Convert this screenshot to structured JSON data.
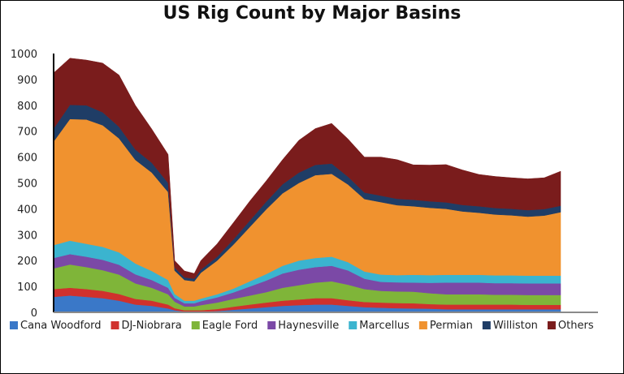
{
  "chart_data": {
    "type": "area",
    "stacked": true,
    "title": "US Rig Count by Major Basins",
    "xlabel": "",
    "ylabel": "",
    "ylim": [
      0,
      1000
    ],
    "yticks": [
      0,
      100,
      200,
      300,
      400,
      500,
      600,
      700,
      800,
      900,
      1000
    ],
    "grid": false,
    "legend_position": "bottom",
    "x": [
      0,
      5,
      10,
      15,
      20,
      25,
      30,
      35,
      37,
      40,
      43,
      45,
      50,
      55,
      60,
      65,
      70,
      75,
      80,
      85,
      90,
      95,
      100,
      105,
      110,
      115,
      120,
      125,
      130,
      135,
      140,
      145,
      150,
      155
    ],
    "series": [
      {
        "name": "Cana Woodford",
        "color": "#3a78c8",
        "values": [
          60,
          65,
          60,
          55,
          45,
          30,
          25,
          15,
          8,
          3,
          3,
          3,
          5,
          10,
          15,
          20,
          25,
          28,
          30,
          30,
          25,
          20,
          18,
          16,
          15,
          14,
          12,
          12,
          12,
          12,
          12,
          12,
          12,
          12
        ]
      },
      {
        "name": "DJ-Niobrara",
        "color": "#d0312d",
        "values": [
          30,
          30,
          30,
          28,
          26,
          22,
          20,
          15,
          8,
          5,
          5,
          5,
          8,
          12,
          15,
          18,
          20,
          22,
          25,
          25,
          22,
          20,
          20,
          20,
          20,
          18,
          18,
          18,
          18,
          18,
          18,
          17,
          17,
          17
        ]
      },
      {
        "name": "Eagle Ford",
        "color": "#7fb539",
        "values": [
          80,
          90,
          85,
          80,
          75,
          60,
          50,
          40,
          25,
          15,
          15,
          20,
          25,
          30,
          35,
          40,
          50,
          55,
          60,
          65,
          60,
          50,
          45,
          45,
          45,
          42,
          40,
          40,
          40,
          38,
          38,
          38,
          38,
          38
        ]
      },
      {
        "name": "Haynesville",
        "color": "#7b49a6",
        "values": [
          40,
          40,
          40,
          40,
          38,
          35,
          30,
          25,
          15,
          12,
          12,
          15,
          20,
          25,
          35,
          45,
          55,
          60,
          60,
          60,
          55,
          40,
          35,
          35,
          35,
          40,
          45,
          45,
          45,
          45,
          45,
          45,
          45,
          45
        ]
      },
      {
        "name": "Marcellus",
        "color": "#3bb4cf",
        "values": [
          50,
          52,
          50,
          50,
          48,
          42,
          35,
          30,
          15,
          10,
          10,
          10,
          12,
          15,
          20,
          25,
          30,
          35,
          35,
          35,
          32,
          28,
          28,
          28,
          30,
          30,
          30,
          30,
          30,
          30,
          30,
          30,
          30,
          30
        ]
      },
      {
        "name": "Permian",
        "color": "#f0922f",
        "values": [
          400,
          470,
          480,
          470,
          440,
          400,
          380,
          340,
          90,
          80,
          75,
          100,
          130,
          170,
          210,
          250,
          280,
          300,
          320,
          320,
          300,
          280,
          280,
          270,
          265,
          260,
          255,
          245,
          240,
          235,
          232,
          228,
          232,
          245
        ]
      },
      {
        "name": "Williston",
        "color": "#1f3d66",
        "values": [
          50,
          55,
          55,
          50,
          45,
          40,
          38,
          35,
          12,
          10,
          10,
          12,
          15,
          20,
          25,
          30,
          35,
          40,
          40,
          40,
          30,
          25,
          25,
          25,
          25,
          25,
          25,
          25,
          25,
          25,
          25,
          25,
          25,
          25
        ]
      },
      {
        "name": "Others",
        "color": "#7a1c1c",
        "values": [
          215,
          180,
          175,
          190,
          200,
          171,
          130,
          110,
          27,
          25,
          20,
          35,
          50,
          65,
          75,
          80,
          95,
          125,
          140,
          155,
          146,
          137,
          149,
          151,
          135,
          140,
          146,
          135,
          123,
          122,
          120,
          121,
          121,
          133
        ]
      }
    ]
  }
}
